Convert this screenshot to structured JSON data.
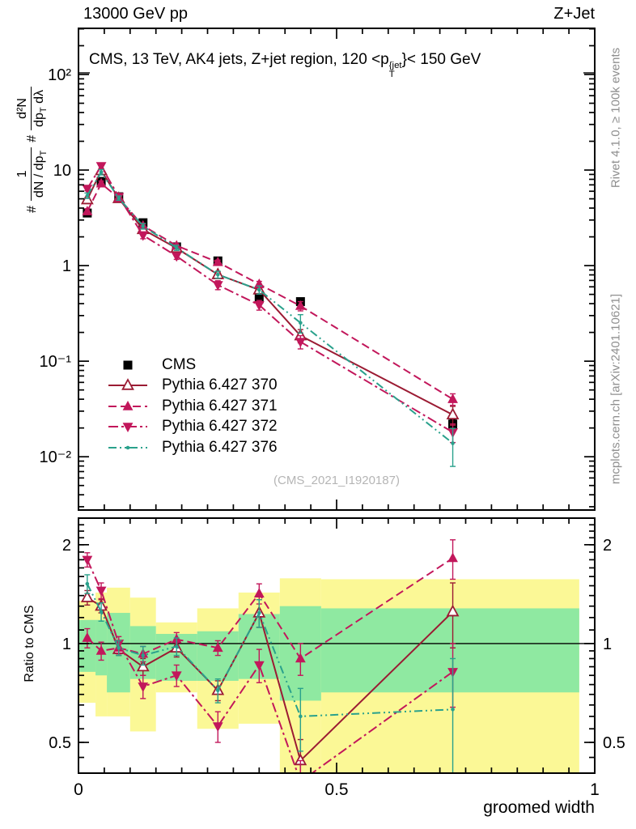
{
  "header": {
    "beam": "13000 GeV pp",
    "process": "Z+Jet"
  },
  "main_panel": {
    "title": {
      "pre": "CMS, 13 TeV, AK4 jets, Z+jet region, 120 <p",
      "sup": "{jet",
      "sub": "T",
      "post": "}< 150 GeV"
    },
    "ylabel": {
      "hash1": "#",
      "f1num": "1",
      "f1den": "dN / dp",
      "f1sub": "T",
      "hash2": "#",
      "f2num": "d²N",
      "f2den_a": "dp",
      "f2sub": "T",
      "f2den_b": " dλ"
    },
    "watermark": "(CMS_2021_I1920187)"
  },
  "ratio_panel": {
    "ylabel": "Ratio to CMS",
    "xlabel": "groomed width"
  },
  "sidebar_right": {
    "top": "Rivet 4.1.0, ≥ 100k events",
    "bottom": "mcplots.cern.ch [arXiv:2401.10621]"
  },
  "chart_data": {
    "type": "line",
    "title": "CMS, 13 TeV, AK4 jets, Z+jet region, 120 < pT{jet} < 150 GeV",
    "xlabel": "groomed width",
    "ylabel": "# 1/(dN/dpT) # d2N/(dpT dlambda)",
    "ratio_ylabel": "Ratio to CMS",
    "x": [
      0.017,
      0.044,
      0.078,
      0.125,
      0.19,
      0.27,
      0.35,
      0.43,
      0.725
    ],
    "bin_edges": [
      0,
      0.033,
      0.055,
      0.1,
      0.15,
      0.23,
      0.31,
      0.39,
      0.47,
      0.97
    ],
    "x_axis": {
      "lim": [
        0,
        1
      ],
      "major": [
        0,
        0.5,
        1
      ],
      "major_labels": [
        "0",
        "0.5",
        "1"
      ],
      "minor_step": 0.05
    },
    "main_axis": {
      "scale": "log",
      "ylim": [
        0.00277,
        304
      ],
      "yticks": [
        {
          "v": 100,
          "label": "10²"
        },
        {
          "v": 10,
          "label": "10"
        },
        {
          "v": 1,
          "label": "1"
        },
        {
          "v": 0.1,
          "label": "10⁻¹"
        },
        {
          "v": 0.01,
          "label": "10⁻²"
        }
      ]
    },
    "ratio_axis": {
      "scale": "log",
      "ylim": [
        0.403,
        2.41
      ],
      "yticks": [
        {
          "v": 2,
          "label": "2"
        },
        {
          "v": 1,
          "label": "1"
        },
        {
          "v": 0.5,
          "label": "0.5"
        }
      ]
    },
    "cms": {
      "name": "CMS",
      "color": "#000000",
      "marker": "square",
      "values": [
        3.55,
        7.6,
        5.25,
        2.81,
        1.57,
        1.12,
        0.45,
        0.42,
        0.022
      ],
      "err_rel": [
        0.05,
        0.04,
        0.04,
        0.04,
        0.05,
        0.05,
        0.07,
        0.07,
        0.12
      ]
    },
    "series": [
      {
        "id": "p370",
        "name": "Pythia 6.427 370",
        "color": "#9b1b33",
        "line": "solid",
        "marker": "triangle-open",
        "ratio": [
          1.38,
          1.3,
          0.96,
          0.85,
          0.97,
          0.72,
          1.24,
          0.44,
          1.25
        ],
        "ratio_err": [
          0.07,
          0.06,
          0.04,
          0.05,
          0.06,
          0.05,
          0.12,
          0.07,
          0.28
        ]
      },
      {
        "id": "p371",
        "name": "Pythia 6.427 371",
        "color": "#c2175b",
        "line": "dash",
        "marker": "triangle-up",
        "ratio": [
          1.04,
          0.95,
          0.97,
          0.93,
          1.03,
          0.97,
          1.42,
          0.9,
          1.82
        ],
        "ratio_err": [
          0.07,
          0.06,
          0.04,
          0.05,
          0.05,
          0.05,
          0.1,
          0.1,
          0.25
        ]
      },
      {
        "id": "p372",
        "name": "Pythia 6.427 372",
        "color": "#c2175b",
        "line": "dashdot",
        "marker": "triangle-down",
        "ratio": [
          1.8,
          1.45,
          1.0,
          0.74,
          0.8,
          0.56,
          0.86,
          0.38,
          0.82
        ],
        "ratio_err": [
          0.09,
          0.08,
          0.05,
          0.06,
          0.06,
          0.06,
          0.1,
          0.06,
          0.18
        ]
      },
      {
        "id": "p376",
        "name": "Pythia 6.427 376",
        "color": "#2aa18c",
        "line": "dashdotdot",
        "marker": "dot",
        "ratio": [
          1.52,
          1.25,
          0.97,
          0.92,
          0.98,
          0.72,
          1.24,
          0.6,
          0.63
        ],
        "ratio_err": [
          0.1,
          0.08,
          0.05,
          0.06,
          0.06,
          0.06,
          0.12,
          0.13,
          0.27
        ]
      }
    ],
    "bands": {
      "yellow_color": "#fbf896",
      "green_color": "#8fe9a1",
      "yellow": [
        [
          0.66,
          1.35
        ],
        [
          0.6,
          1.43
        ],
        [
          0.6,
          1.48
        ],
        [
          0.54,
          1.38
        ],
        [
          0.71,
          1.16
        ],
        [
          0.55,
          1.28
        ],
        [
          0.57,
          1.43
        ],
        [
          0.403,
          1.58
        ],
        [
          0.403,
          1.57
        ]
      ],
      "green": [
        [
          0.82,
          1.18
        ],
        [
          0.8,
          1.18
        ],
        [
          0.71,
          1.24
        ],
        [
          0.78,
          1.13
        ],
        [
          0.77,
          1.07
        ],
        [
          0.77,
          1.09
        ],
        [
          0.78,
          1.23
        ],
        [
          0.67,
          1.3
        ],
        [
          0.71,
          1.28
        ]
      ]
    },
    "legend_position": "lower-left-of-main-panel",
    "grid": false
  }
}
